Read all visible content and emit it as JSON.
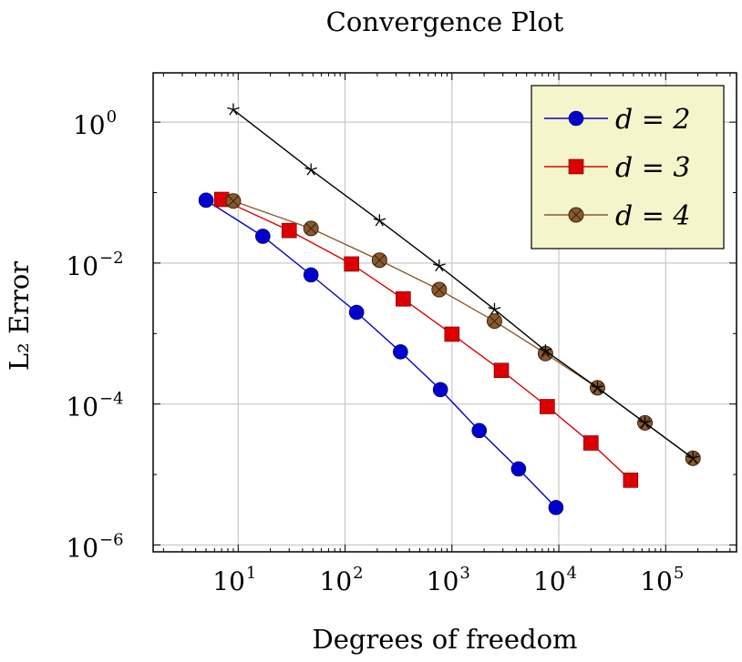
{
  "chart_data": {
    "type": "line",
    "title": "Convergence Plot",
    "xlabel": "Degrees of freedom",
    "ylabel": "L₂ Error",
    "xscale": "log",
    "yscale": "log",
    "xlim": [
      1.6,
      460000
    ],
    "ylim": [
      8e-07,
      5
    ],
    "grid": true,
    "legend_position": "top-right",
    "x_ticks": [
      {
        "value": 10,
        "base": "10",
        "exp": "1"
      },
      {
        "value": 100,
        "base": "10",
        "exp": "2"
      },
      {
        "value": 1000,
        "base": "10",
        "exp": "3"
      },
      {
        "value": 10000,
        "base": "10",
        "exp": "4"
      },
      {
        "value": 100000,
        "base": "10",
        "exp": "5"
      }
    ],
    "y_ticks": [
      {
        "value": 1,
        "base": "10",
        "exp": "0"
      },
      {
        "value": 0.01,
        "base": "10",
        "exp": "−2"
      },
      {
        "value": 0.0001,
        "base": "10",
        "exp": "−4"
      },
      {
        "value": 1e-06,
        "base": "10",
        "exp": "−6"
      }
    ],
    "series": [
      {
        "name": "d = 2",
        "color": "#0000cc",
        "marker": "circle",
        "points": [
          [
            5,
            0.078
          ],
          [
            17,
            0.024
          ],
          [
            48,
            0.0068
          ],
          [
            128,
            0.002
          ],
          [
            330,
            0.00055
          ],
          [
            780,
            0.00016
          ],
          [
            1800,
            4.2e-05
          ],
          [
            4200,
            1.2e-05
          ],
          [
            9400,
            3.4e-06
          ]
        ]
      },
      {
        "name": "d = 3",
        "color": "#dd0000",
        "marker": "square",
        "points": [
          [
            7,
            0.08
          ],
          [
            30,
            0.029
          ],
          [
            115,
            0.0097
          ],
          [
            350,
            0.0031
          ],
          [
            1000,
            0.00098
          ],
          [
            2900,
            0.0003
          ],
          [
            7800,
            9.2e-05
          ],
          [
            20000,
            2.8e-05
          ],
          [
            47000,
            8.3e-06
          ]
        ]
      },
      {
        "name": "d = 4",
        "color": "#8b5a2b",
        "marker": "otimes",
        "points": [
          [
            9,
            0.076
          ],
          [
            48,
            0.031
          ],
          [
            210,
            0.011
          ],
          [
            760,
            0.0042
          ],
          [
            2500,
            0.0015
          ],
          [
            7500,
            0.00052
          ],
          [
            23000,
            0.00017
          ],
          [
            64000,
            5.4e-05
          ],
          [
            180000,
            1.7e-05
          ]
        ]
      },
      {
        "name": "",
        "color": "#000000",
        "marker": "star",
        "points": [
          [
            9,
            1.5
          ],
          [
            48,
            0.21
          ],
          [
            210,
            0.04
          ],
          [
            760,
            0.0091
          ],
          [
            2500,
            0.0022
          ],
          [
            7500,
            0.00057
          ],
          [
            23000,
            0.00017
          ],
          [
            64000,
            5.4e-05
          ],
          [
            180000,
            1.7e-05
          ]
        ]
      }
    ]
  }
}
